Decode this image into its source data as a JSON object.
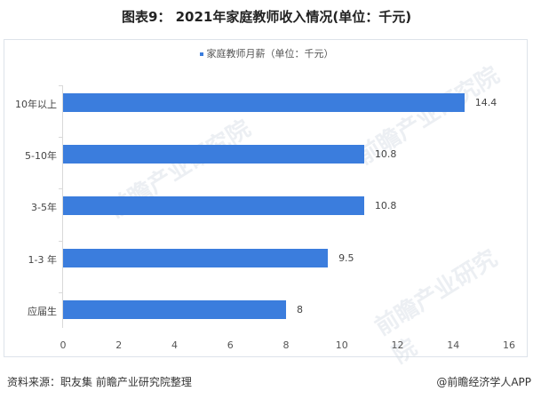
{
  "title": "图表9： 2021年家庭教师收入情况(单位：千元)",
  "legend": {
    "label": "家庭教师月薪（单位：千元）",
    "color": "#3b7ddd"
  },
  "footer": {
    "source": "资料来源：职友集 前瞻产业研究院整理",
    "credit": "@前瞻经济学人APP"
  },
  "watermark": "前瞻产业研究院",
  "chart_data": {
    "type": "bar",
    "orientation": "horizontal",
    "title": "图表9： 2021年家庭教师收入情况(单位：千元)",
    "categories": [
      "10年以上",
      "5-10年",
      "3-5年",
      "1-3 年",
      "应届生"
    ],
    "series": [
      {
        "name": "家庭教师月薪（单位：千元）",
        "values": [
          14.4,
          10.8,
          10.8,
          9.5,
          8
        ],
        "color": "#3b7ddd"
      }
    ],
    "value_labels": [
      "14.4",
      "10.8",
      "10.8",
      "9.5",
      "8"
    ],
    "xlabel": "",
    "ylabel": "",
    "xlim": [
      0,
      16
    ],
    "xticks": [
      "0",
      "2",
      "4",
      "6",
      "8",
      "10",
      "12",
      "14",
      "16"
    ],
    "grid": false,
    "legend_position": "top"
  }
}
